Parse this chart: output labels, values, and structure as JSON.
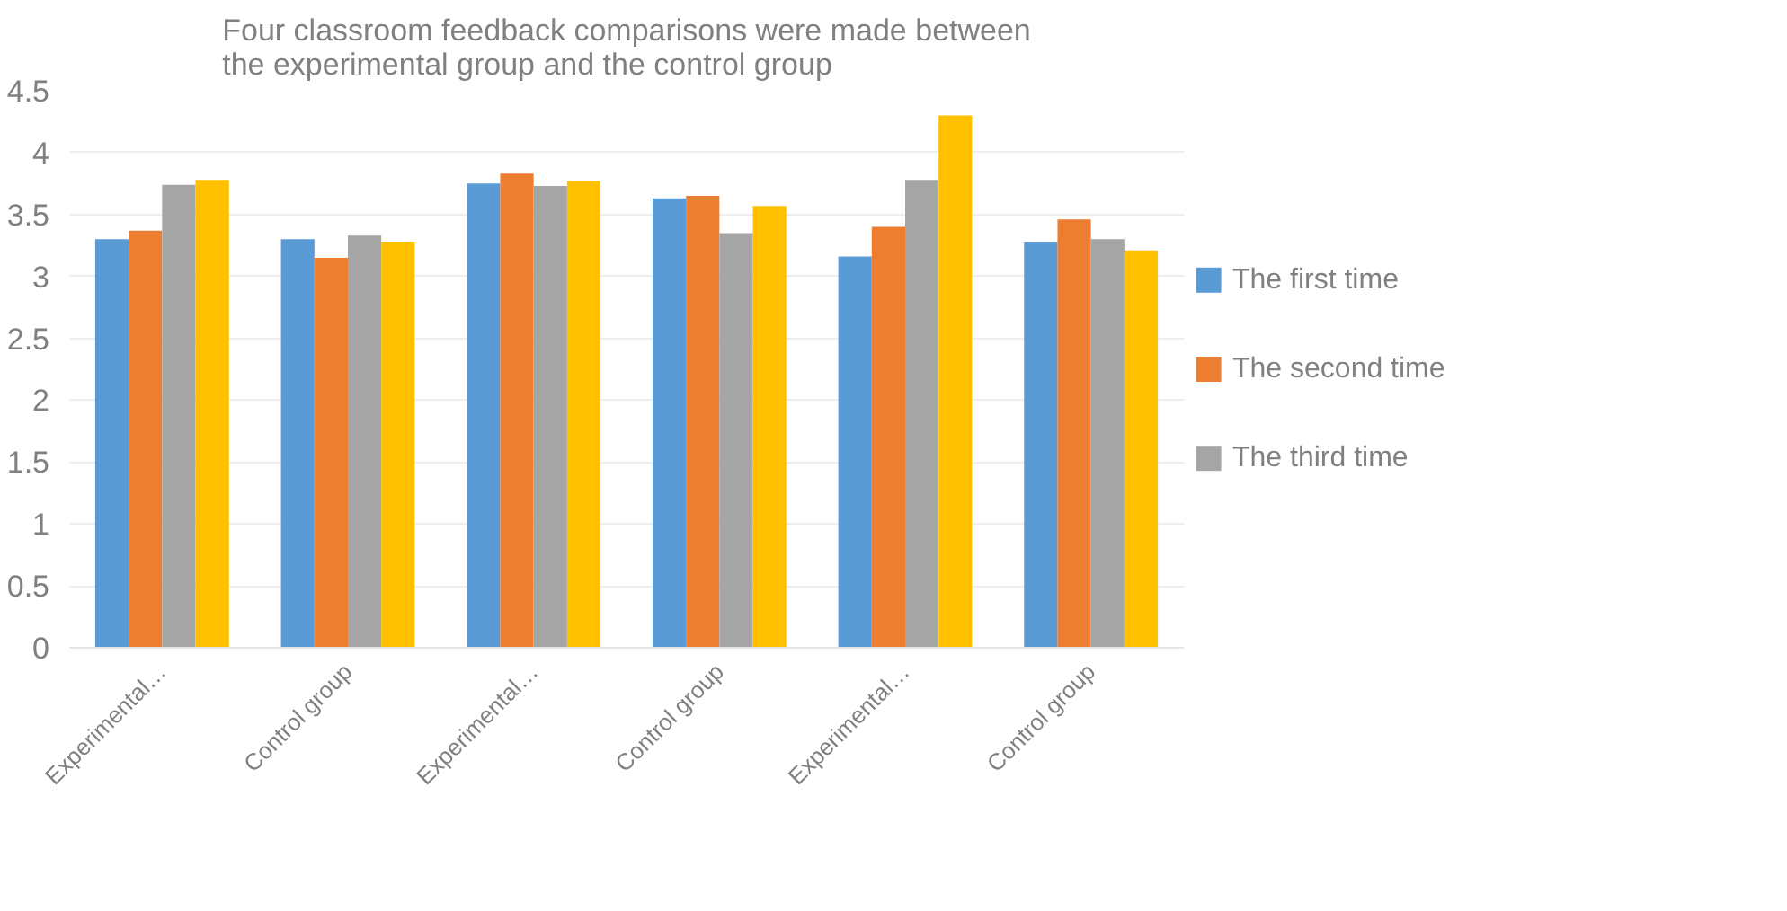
{
  "chart_data": {
    "type": "bar",
    "title": "Four classroom feedback comparisons were made between the experimental group and the control group",
    "categories": [
      "Experimental…",
      "Control group",
      "Experimental…",
      "Control group",
      "Experimental…",
      "Control group"
    ],
    "series": [
      {
        "name": "The first time",
        "color": "#5b9bd5",
        "values": [
          3.3,
          3.3,
          3.75,
          3.63,
          3.16,
          3.28
        ]
      },
      {
        "name": "The second time",
        "color": "#ed7d31",
        "values": [
          3.37,
          3.15,
          3.83,
          3.65,
          3.4,
          3.46
        ]
      },
      {
        "name": "The third time",
        "color": "#a5a5a5",
        "values": [
          3.74,
          3.33,
          3.73,
          3.35,
          3.78,
          3.3
        ]
      },
      {
        "color": "#ffc000",
        "values": [
          3.78,
          3.28,
          3.77,
          3.57,
          4.3,
          3.21
        ]
      }
    ],
    "ylim": [
      0,
      4.5
    ],
    "yticks": [
      0,
      0.5,
      1,
      1.5,
      2,
      2.5,
      3,
      3.5,
      4,
      4.5
    ],
    "grid": "y",
    "legend": "right"
  }
}
